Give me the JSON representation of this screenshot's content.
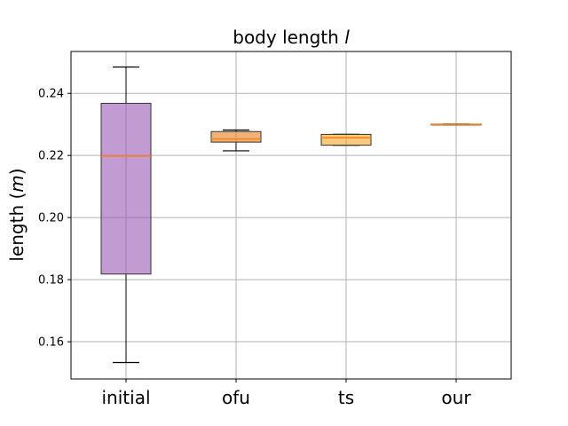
{
  "chart_data": {
    "type": "box",
    "title": "body length",
    "title_var": "l",
    "ylabel": "length",
    "ylabel_unit": "m",
    "ylim": [
      0.148,
      0.2535
    ],
    "yticks": [
      0.16,
      0.18,
      0.2,
      0.22,
      0.24
    ],
    "ytick_labels": [
      "0.16",
      "0.18",
      "0.20",
      "0.22",
      "0.24"
    ],
    "grid": true,
    "categories": [
      "initial",
      "ofu",
      "ts",
      "our"
    ],
    "boxes": [
      {
        "category": "initial",
        "whisker_low": 0.1533,
        "q1": 0.1818,
        "median": 0.2198,
        "q3": 0.2368,
        "whisker_high": 0.2485,
        "color": "#9b59b6"
      },
      {
        "category": "ofu",
        "whisker_low": 0.2215,
        "q1": 0.2243,
        "median": 0.2253,
        "q3": 0.2277,
        "whisker_high": 0.2282,
        "color": "#e67e22"
      },
      {
        "category": "ts",
        "whisker_low": 0.2233,
        "q1": 0.2233,
        "median": 0.2257,
        "q3": 0.2268,
        "whisker_high": 0.2268,
        "color": "#f5a623"
      },
      {
        "category": "our",
        "whisker_low": 0.2299,
        "q1": 0.2299,
        "median": 0.23,
        "q3": 0.2301,
        "whisker_high": 0.2301,
        "color": "#e74c3c"
      }
    ],
    "median_color": "#ff7f0e"
  }
}
